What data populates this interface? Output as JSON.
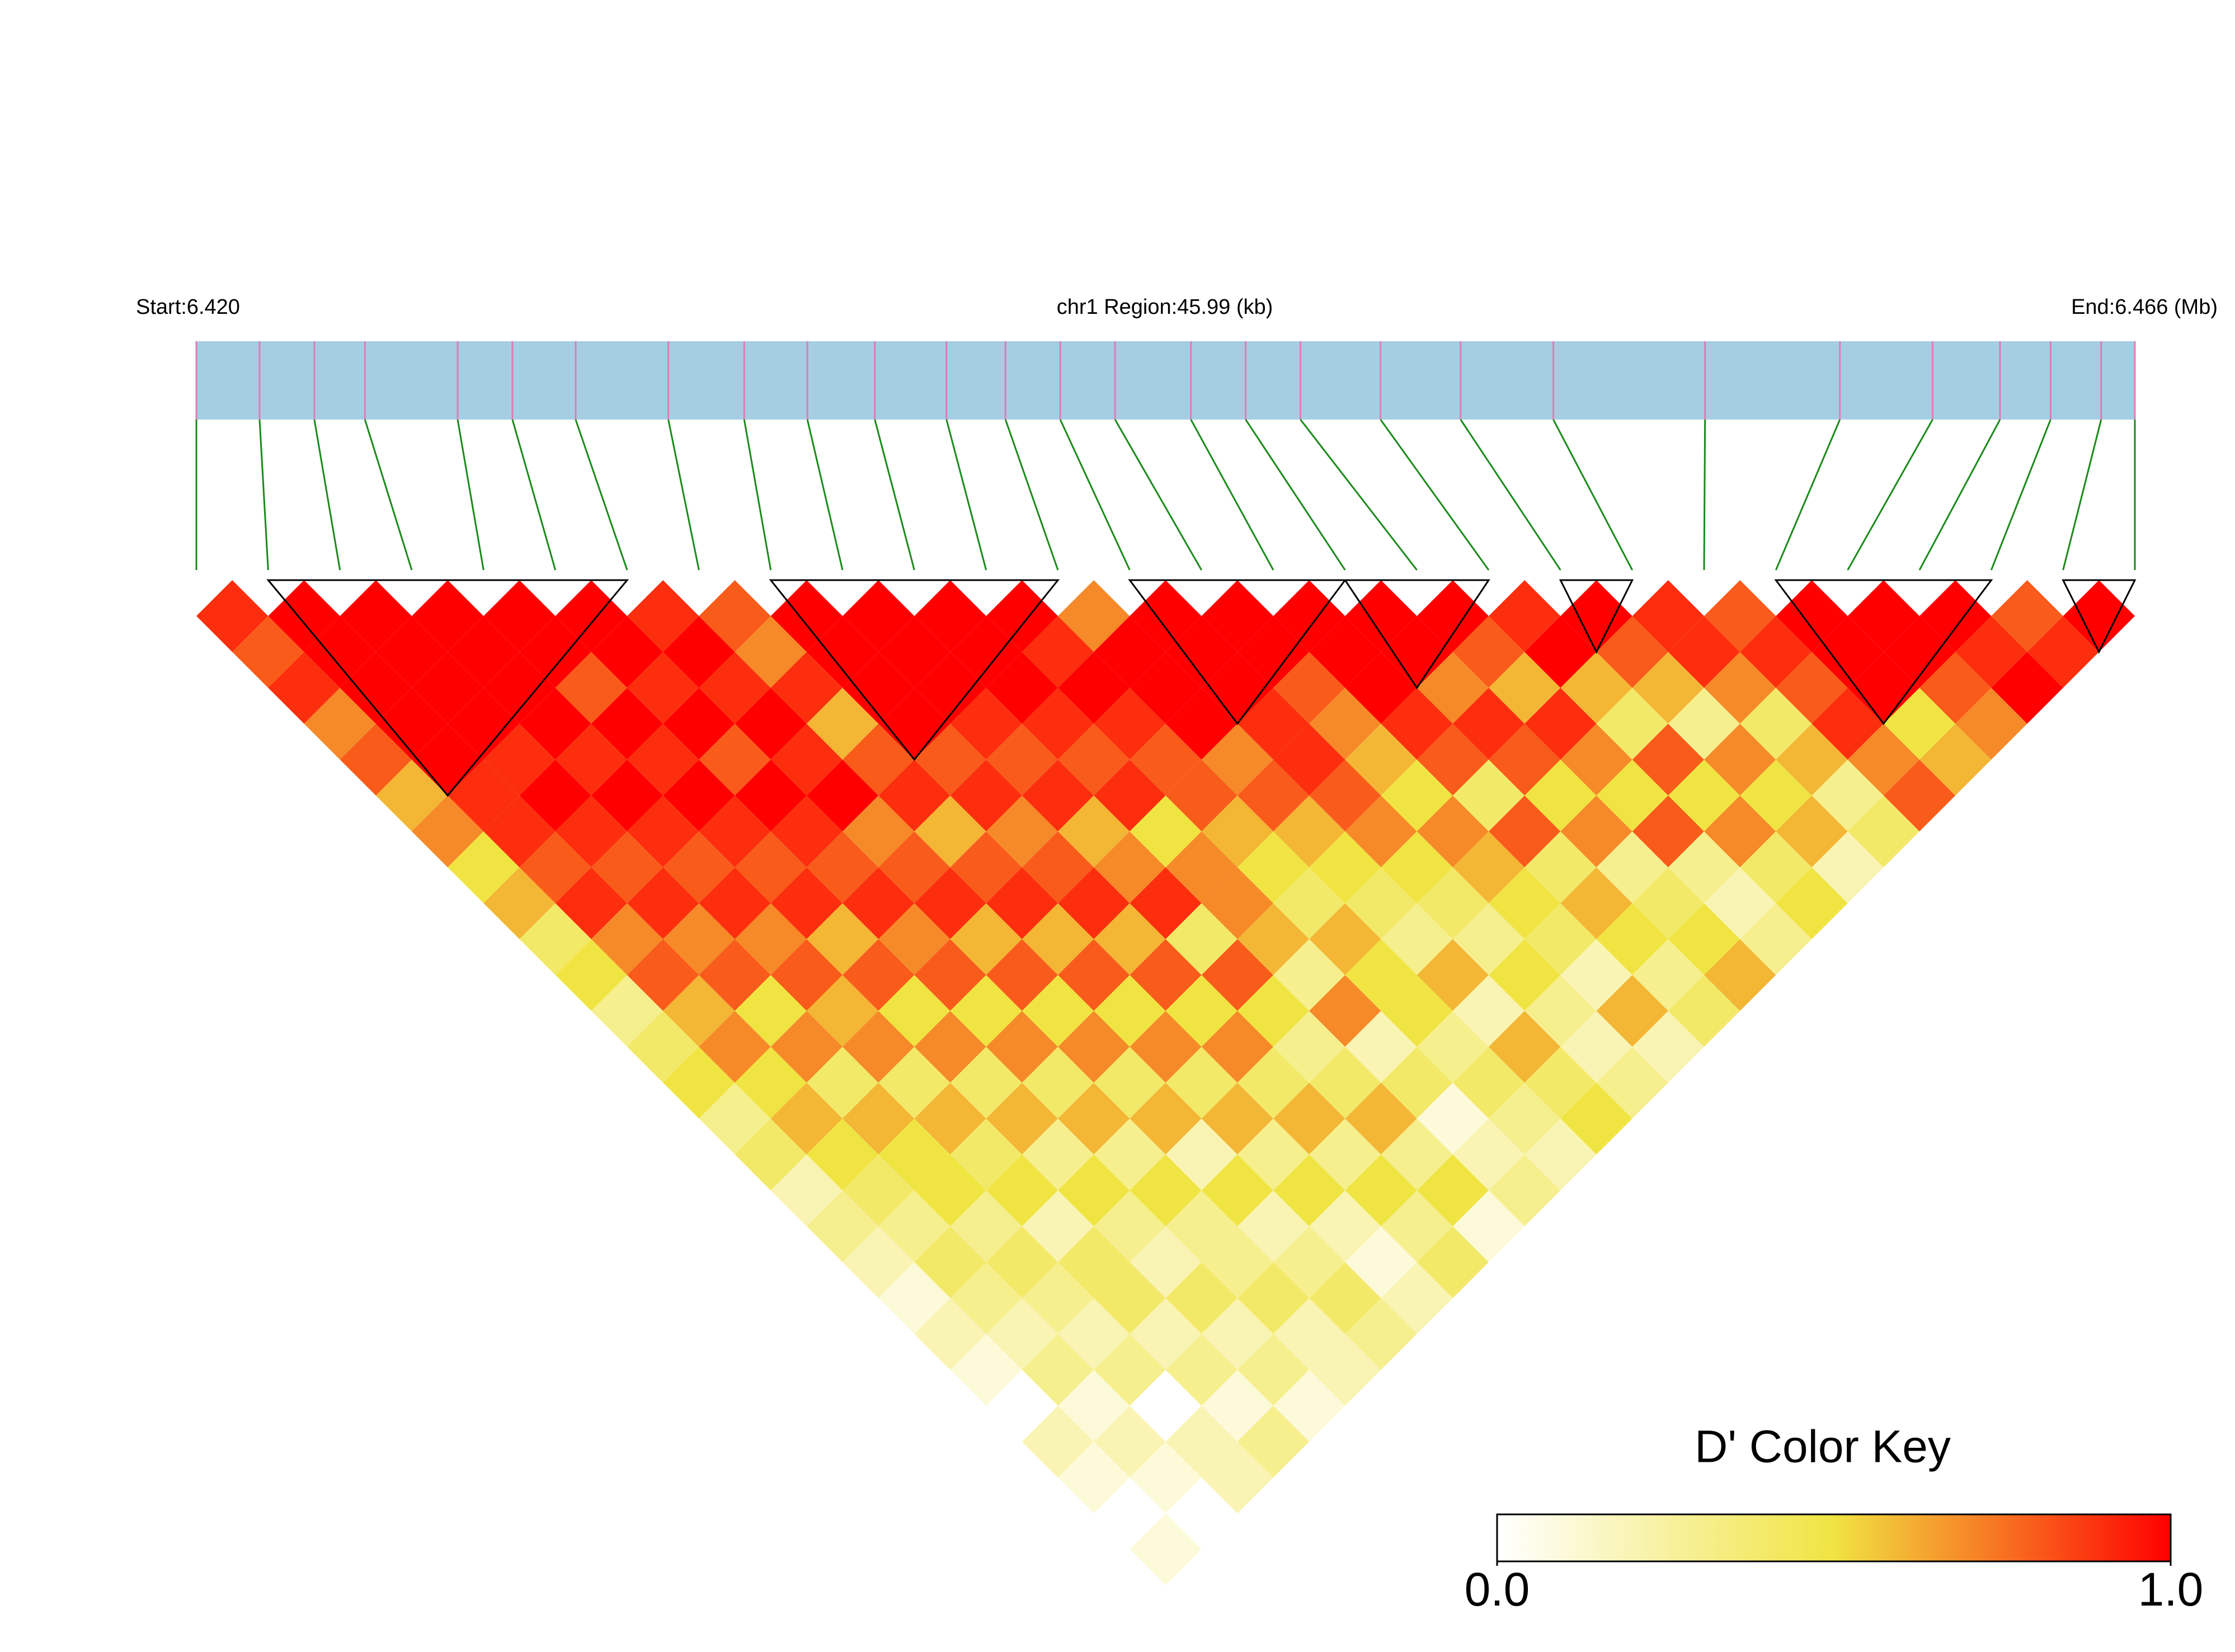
{
  "chart_data": {
    "type": "ld_heatmap",
    "start_label": "Start:6.420",
    "region_label": "chr1 Region:45.99 (kb)",
    "end_label": "End:6.466 (Mb)",
    "xlim": [
      6.42,
      6.466
    ],
    "snp_positions": [
      6.42,
      6.4215,
      6.4228,
      6.424,
      6.4262,
      6.4275,
      6.429,
      6.4312,
      6.433,
      6.4345,
      6.4361,
      6.4378,
      6.4392,
      6.4405,
      6.4418,
      6.4436,
      6.4449,
      6.4462,
      6.4481,
      6.45,
      6.4522,
      6.4558,
      6.459,
      6.4612,
      6.4628,
      6.464,
      6.4652,
      6.466
    ],
    "bar_color": "#a6cee3",
    "snp_line_color": "#e07cb4",
    "connector_color": "#1a8a1a",
    "block_color": "#000000",
    "ld": {
      "rows": [
        [
          0.9
        ],
        [
          0.8,
          1.0
        ],
        [
          0.9,
          1.0,
          1.0
        ],
        [
          0.7,
          1.0,
          1.0,
          1.0
        ],
        [
          0.8,
          1.0,
          1.0,
          1.0,
          1.0
        ],
        [
          0.6,
          1.0,
          1.0,
          1.0,
          1.0,
          1.0
        ],
        [
          0.7,
          0.9,
          0.9,
          1.0,
          0.8,
          1.0,
          0.9
        ],
        [
          0.5,
          0.9,
          1.0,
          0.9,
          1.0,
          0.9,
          1.0,
          0.8
        ],
        [
          0.6,
          0.8,
          0.9,
          1.0,
          0.9,
          1.0,
          0.9,
          0.7,
          1.0
        ],
        [
          0.4,
          0.9,
          0.8,
          0.9,
          1.0,
          0.8,
          1.0,
          0.9,
          1.0,
          1.0
        ],
        [
          0.5,
          0.7,
          0.9,
          0.8,
          0.9,
          1.0,
          0.9,
          0.6,
          1.0,
          1.0,
          1.0
        ],
        [
          0.3,
          0.8,
          0.7,
          0.9,
          0.8,
          0.9,
          1.0,
          0.8,
          1.0,
          1.0,
          1.0,
          1.0
        ],
        [
          0.4,
          0.6,
          0.8,
          0.7,
          0.9,
          0.8,
          0.7,
          0.9,
          0.8,
          0.9,
          1.0,
          0.9,
          0.7
        ],
        [
          0.5,
          0.7,
          0.5,
          0.8,
          0.6,
          0.9,
          0.8,
          0.6,
          0.9,
          0.8,
          0.9,
          1.0,
          1.0,
          1.0
        ],
        [
          0.3,
          0.5,
          0.7,
          0.6,
          0.8,
          0.7,
          0.9,
          0.8,
          0.7,
          0.9,
          0.8,
          0.9,
          1.0,
          1.0,
          1.0
        ],
        [
          0.4,
          0.6,
          0.4,
          0.7,
          0.5,
          0.8,
          0.6,
          0.9,
          0.8,
          0.6,
          0.9,
          0.8,
          1.0,
          1.0,
          1.0,
          1.0
        ],
        [
          0.2,
          0.5,
          0.6,
          0.4,
          0.7,
          0.5,
          0.8,
          0.6,
          0.9,
          0.7,
          0.5,
          0.8,
          0.7,
          0.9,
          0.8,
          1.0,
          1.0
        ],
        [
          0.3,
          0.4,
          0.5,
          0.6,
          0.4,
          0.7,
          0.5,
          0.8,
          0.6,
          0.9,
          0.7,
          0.6,
          0.8,
          0.9,
          0.7,
          1.0,
          1.0,
          1.0
        ],
        [
          0.2,
          0.3,
          0.5,
          0.4,
          0.6,
          0.4,
          0.7,
          0.5,
          0.8,
          0.4,
          0.7,
          0.5,
          0.6,
          0.8,
          0.6,
          0.9,
          0.7,
          0.8,
          0.9
        ],
        [
          0.1,
          0.4,
          0.3,
          0.5,
          0.3,
          0.6,
          0.4,
          0.7,
          0.5,
          0.8,
          0.6,
          0.4,
          0.5,
          0.7,
          0.5,
          0.8,
          0.9,
          0.6,
          1.0,
          1.0
        ],
        [
          0.2,
          0.3,
          0.4,
          0.2,
          0.5,
          0.3,
          0.6,
          0.4,
          0.7,
          0.5,
          0.3,
          0.6,
          0.4,
          0.5,
          0.7,
          0.4,
          0.8,
          0.9,
          0.6,
          0.8,
          0.9
        ],
        [
          0.1,
          0.2,
          0.3,
          0.4,
          0.3,
          0.5,
          0.2,
          0.6,
          0.4,
          0.3,
          0.7,
          0.5,
          0.3,
          0.4,
          0.6,
          0.8,
          0.5,
          0.7,
          0.4,
          0.6,
          0.9,
          0.8
        ],
        [
          0.0,
          0.3,
          0.2,
          0.4,
          0.2,
          0.3,
          0.5,
          0.3,
          0.6,
          0.4,
          0.2,
          0.5,
          0.6,
          0.3,
          0.5,
          0.4,
          0.7,
          0.5,
          0.8,
          0.3,
          0.7,
          0.9,
          1.0
        ],
        [
          0.2,
          0.1,
          0.3,
          0.2,
          0.4,
          0.3,
          0.2,
          0.5,
          0.3,
          0.6,
          0.4,
          0.3,
          0.2,
          0.5,
          0.4,
          0.6,
          0.3,
          0.8,
          0.5,
          0.7,
          0.4,
          0.8,
          1.0,
          1.0
        ],
        [
          0.1,
          0.2,
          0.0,
          0.3,
          0.2,
          0.4,
          0.3,
          0.2,
          0.5,
          0.3,
          0.1,
          0.4,
          0.6,
          0.3,
          0.2,
          0.5,
          0.4,
          0.3,
          0.7,
          0.5,
          0.6,
          0.9,
          1.0,
          1.0,
          1.0
        ],
        [
          0.0,
          0.1,
          0.2,
          0.1,
          0.3,
          0.2,
          0.4,
          0.1,
          0.3,
          0.5,
          0.2,
          0.3,
          0.4,
          0.2,
          0.6,
          0.3,
          0.5,
          0.2,
          0.4,
          0.6,
          0.3,
          0.7,
          0.5,
          0.8,
          0.9,
          0.8
        ],
        [
          0.1,
          0.0,
          0.2,
          0.3,
          0.1,
          0.2,
          0.3,
          0.2,
          0.4,
          0.1,
          0.3,
          0.2,
          0.5,
          0.3,
          0.2,
          0.4,
          0.6,
          0.3,
          0.5,
          0.2,
          0.4,
          0.8,
          0.6,
          0.7,
          1.0,
          0.9,
          1.0
        ]
      ]
    },
    "blocks": [
      [
        1,
        6
      ],
      [
        8,
        12
      ],
      [
        13,
        16
      ],
      [
        16,
        18
      ],
      [
        19,
        20
      ],
      [
        22,
        25
      ],
      [
        26,
        27
      ]
    ],
    "colormap": [
      "#ffffff",
      "#f0e442",
      "#ff0000"
    ],
    "key_title": "D' Color Key",
    "key_lim": [
      0,
      1
    ],
    "key_ticks": [
      {
        "value": 0,
        "label": "0.0"
      },
      {
        "value": 1,
        "label": "1.0"
      }
    ]
  }
}
